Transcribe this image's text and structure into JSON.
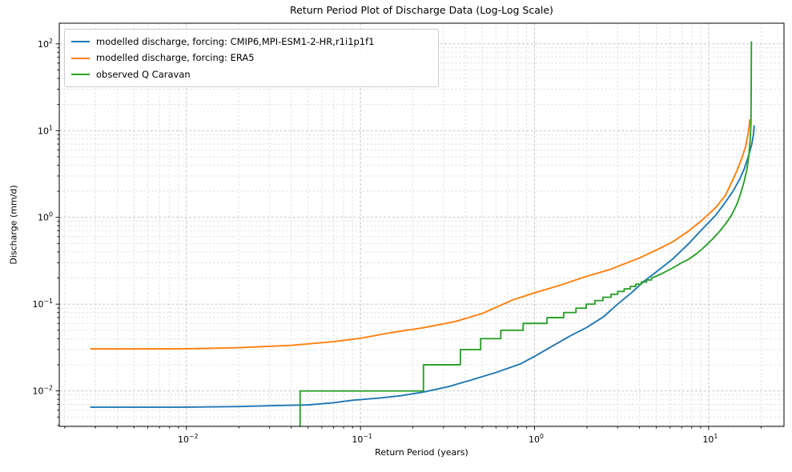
{
  "chart_data": {
    "type": "line",
    "title": "Return Period Plot of Discharge Data (Log-Log Scale)",
    "xlabel": "Return Period (years)",
    "ylabel": "Discharge (mm/d)",
    "x_scale": "log",
    "y_scale": "log",
    "xlim": [
      0.00186,
      27.1
    ],
    "ylim": [
      0.0039,
      173
    ],
    "x_major_ticks": [
      0.01,
      0.1,
      1,
      10
    ],
    "y_major_ticks": [
      0.01,
      0.1,
      1,
      10,
      100
    ],
    "grid": {
      "major": true,
      "minor": true,
      "style": "dashed"
    },
    "legend_position": "upper left",
    "series": [
      {
        "name": "modelled discharge, forcing: CMIP6,MPI-ESM1-2-HR,r1i1p1f1",
        "color": "#1f77b4",
        "points": [
          [
            0.0028,
            0.0065
          ],
          [
            0.005,
            0.0065
          ],
          [
            0.01,
            0.0065
          ],
          [
            0.02,
            0.0066
          ],
          [
            0.035,
            0.0068
          ],
          [
            0.05,
            0.0069
          ],
          [
            0.07,
            0.0073
          ],
          [
            0.09,
            0.0078
          ],
          [
            0.13,
            0.0083
          ],
          [
            0.17,
            0.0088
          ],
          [
            0.23,
            0.0097
          ],
          [
            0.32,
            0.0112
          ],
          [
            0.44,
            0.0135
          ],
          [
            0.6,
            0.0163
          ],
          [
            0.83,
            0.0205
          ],
          [
            1.0,
            0.025
          ],
          [
            1.27,
            0.033
          ],
          [
            1.6,
            0.043
          ],
          [
            2.0,
            0.054
          ],
          [
            2.5,
            0.072
          ],
          [
            3.0,
            0.1
          ],
          [
            3.6,
            0.135
          ],
          [
            4.2,
            0.18
          ],
          [
            5.0,
            0.235
          ],
          [
            6.2,
            0.33
          ],
          [
            7.7,
            0.5
          ],
          [
            9.0,
            0.7
          ],
          [
            10.9,
            1.04
          ],
          [
            12.5,
            1.5
          ],
          [
            13.8,
            2.0
          ],
          [
            15.0,
            2.7
          ],
          [
            16.0,
            3.6
          ],
          [
            17.0,
            5.2
          ],
          [
            17.7,
            7.0
          ],
          [
            18.1,
            9.0
          ],
          [
            18.3,
            11.5
          ]
        ]
      },
      {
        "name": "modelled discharge, forcing: ERA5",
        "color": "#ff7f0e",
        "points": [
          [
            0.0028,
            0.0305
          ],
          [
            0.005,
            0.0305
          ],
          [
            0.01,
            0.0306
          ],
          [
            0.02,
            0.0315
          ],
          [
            0.04,
            0.0335
          ],
          [
            0.07,
            0.037
          ],
          [
            0.1,
            0.0405
          ],
          [
            0.15,
            0.047
          ],
          [
            0.23,
            0.0535
          ],
          [
            0.35,
            0.063
          ],
          [
            0.5,
            0.078
          ],
          [
            0.75,
            0.112
          ],
          [
            1.0,
            0.135
          ],
          [
            1.4,
            0.165
          ],
          [
            2.0,
            0.21
          ],
          [
            2.7,
            0.25
          ],
          [
            4.0,
            0.34
          ],
          [
            5.0,
            0.42
          ],
          [
            6.2,
            0.52
          ],
          [
            7.7,
            0.7
          ],
          [
            9.0,
            0.9
          ],
          [
            11.0,
            1.3
          ],
          [
            12.5,
            1.8
          ],
          [
            13.5,
            2.5
          ],
          [
            14.5,
            3.4
          ],
          [
            15.5,
            4.8
          ],
          [
            16.3,
            6.5
          ],
          [
            16.9,
            9.5
          ],
          [
            17.15,
            12.0
          ],
          [
            17.25,
            13.5
          ]
        ]
      },
      {
        "name": "observed Q Caravan",
        "color": "#2ca02c",
        "points": [
          [
            0.045,
            0.0039
          ],
          [
            0.045,
            0.01
          ],
          [
            0.23,
            0.01
          ],
          [
            0.23,
            0.02
          ],
          [
            0.375,
            0.02
          ],
          [
            0.375,
            0.03
          ],
          [
            0.49,
            0.03
          ],
          [
            0.49,
            0.04
          ],
          [
            0.64,
            0.04
          ],
          [
            0.64,
            0.05
          ],
          [
            0.86,
            0.05
          ],
          [
            0.86,
            0.06
          ],
          [
            1.18,
            0.06
          ],
          [
            1.18,
            0.07
          ],
          [
            1.47,
            0.07
          ],
          [
            1.47,
            0.08
          ],
          [
            1.73,
            0.08
          ],
          [
            1.73,
            0.09
          ],
          [
            1.98,
            0.09
          ],
          [
            1.98,
            0.1
          ],
          [
            2.22,
            0.1
          ],
          [
            2.22,
            0.11
          ],
          [
            2.47,
            0.11
          ],
          [
            2.47,
            0.12
          ],
          [
            2.75,
            0.12
          ],
          [
            2.75,
            0.13
          ],
          [
            3.0,
            0.13
          ],
          [
            3.0,
            0.14
          ],
          [
            3.27,
            0.14
          ],
          [
            3.27,
            0.15
          ],
          [
            3.55,
            0.15
          ],
          [
            3.55,
            0.16
          ],
          [
            3.81,
            0.16
          ],
          [
            3.81,
            0.17
          ],
          [
            4.11,
            0.17
          ],
          [
            4.11,
            0.18
          ],
          [
            4.4,
            0.18
          ],
          [
            4.4,
            0.19
          ],
          [
            4.7,
            0.19
          ],
          [
            4.7,
            0.2
          ],
          [
            5.0,
            0.21
          ],
          [
            5.5,
            0.23
          ],
          [
            6.2,
            0.26
          ],
          [
            7.0,
            0.3
          ],
          [
            7.7,
            0.33
          ],
          [
            8.5,
            0.38
          ],
          [
            9.5,
            0.46
          ],
          [
            10.5,
            0.56
          ],
          [
            11.5,
            0.68
          ],
          [
            12.5,
            0.84
          ],
          [
            13.5,
            1.05
          ],
          [
            14.5,
            1.4
          ],
          [
            15.3,
            1.9
          ],
          [
            16.0,
            2.6
          ],
          [
            16.6,
            3.6
          ],
          [
            17.0,
            5.0
          ],
          [
            17.3,
            7.5
          ],
          [
            17.5,
            12.0
          ],
          [
            17.57,
            35.0
          ],
          [
            17.6,
            107.0
          ]
        ]
      }
    ]
  }
}
